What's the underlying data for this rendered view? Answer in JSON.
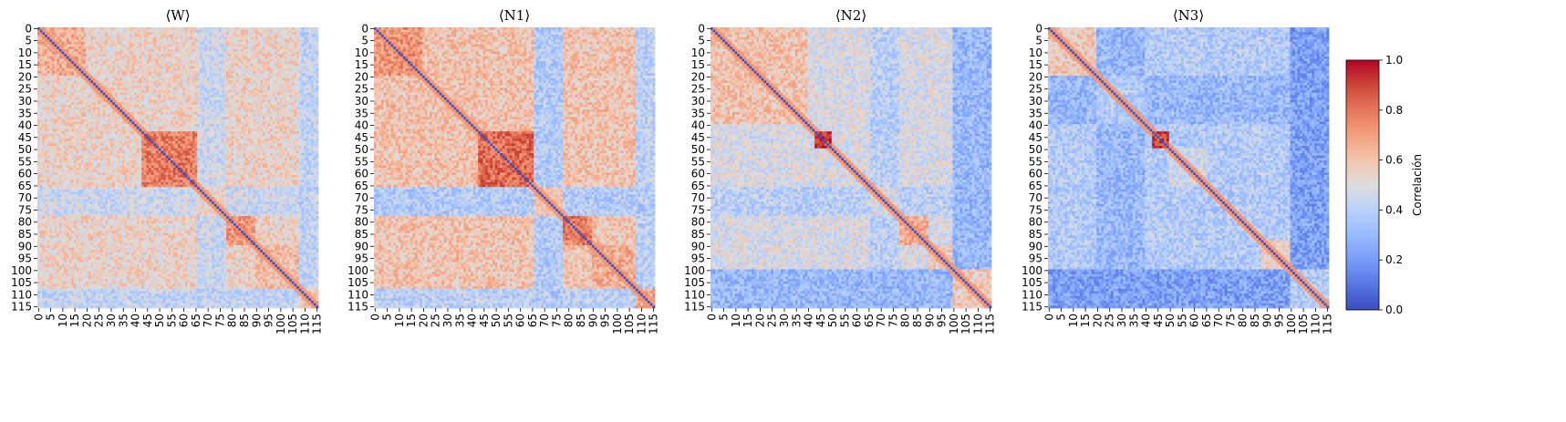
{
  "chart_data": [
    {
      "type": "heatmap",
      "title": "⟨W⟩",
      "size": 116,
      "tick_step": 5,
      "tick_labels": [
        "0",
        "5",
        "10",
        "15",
        "20",
        "25",
        "30",
        "35",
        "40",
        "45",
        "50",
        "55",
        "60",
        "65",
        "70",
        "75",
        "80",
        "85",
        "90",
        "95",
        "100",
        "105",
        "110",
        "115"
      ],
      "base": 0.55,
      "blocks": [
        {
          "range": [
            43,
            66
          ],
          "value": 0.78
        },
        {
          "range": [
            78,
            90
          ],
          "value": 0.72
        },
        {
          "range": [
            90,
            116
          ],
          "value": 0.62
        },
        {
          "range": [
            0,
            20
          ],
          "value": 0.66
        }
      ],
      "low_bands": [
        {
          "range": [
            66,
            78
          ],
          "value": 0.45
        },
        {
          "range": [
            108,
            116
          ],
          "value": 0.42
        }
      ]
    },
    {
      "type": "heatmap",
      "title": "⟨N1⟩",
      "size": 116,
      "tick_step": 5,
      "tick_labels": [
        "0",
        "5",
        "10",
        "15",
        "20",
        "25",
        "30",
        "35",
        "40",
        "45",
        "50",
        "55",
        "60",
        "65",
        "70",
        "75",
        "80",
        "85",
        "90",
        "95",
        "100",
        "105",
        "110",
        "115"
      ],
      "base": 0.6,
      "blocks": [
        {
          "range": [
            43,
            66
          ],
          "value": 0.82
        },
        {
          "range": [
            78,
            90
          ],
          "value": 0.78
        },
        {
          "range": [
            90,
            116
          ],
          "value": 0.66
        },
        {
          "range": [
            0,
            20
          ],
          "value": 0.72
        }
      ],
      "low_bands": [
        {
          "range": [
            66,
            78
          ],
          "value": 0.38
        },
        {
          "range": [
            108,
            116
          ],
          "value": 0.4
        }
      ]
    },
    {
      "type": "heatmap",
      "title": "⟨N2⟩",
      "size": 116,
      "tick_step": 5,
      "tick_labels": [
        "0",
        "5",
        "10",
        "15",
        "20",
        "25",
        "30",
        "35",
        "40",
        "45",
        "50",
        "55",
        "60",
        "65",
        "70",
        "75",
        "80",
        "85",
        "90",
        "95",
        "100",
        "105",
        "110",
        "115"
      ],
      "base": 0.48,
      "blocks": [
        {
          "range": [
            43,
            50
          ],
          "value": 0.92
        },
        {
          "range": [
            0,
            40
          ],
          "value": 0.6
        },
        {
          "range": [
            78,
            90
          ],
          "value": 0.65
        },
        {
          "range": [
            90,
            116
          ],
          "value": 0.58
        }
      ],
      "low_bands": [
        {
          "range": [
            100,
            116
          ],
          "value": 0.3
        },
        {
          "range": [
            66,
            78
          ],
          "value": 0.4
        }
      ]
    },
    {
      "type": "heatmap",
      "title": "⟨N3⟩",
      "size": 116,
      "tick_step": 5,
      "tick_labels": [
        "0",
        "5",
        "10",
        "15",
        "20",
        "25",
        "30",
        "35",
        "40",
        "45",
        "50",
        "55",
        "60",
        "65",
        "70",
        "75",
        "80",
        "85",
        "90",
        "95",
        "100",
        "105",
        "110",
        "115"
      ],
      "base": 0.38,
      "blocks": [
        {
          "range": [
            43,
            50
          ],
          "value": 0.9
        },
        {
          "range": [
            0,
            20
          ],
          "value": 0.58
        },
        {
          "range": [
            88,
            100
          ],
          "value": 0.55
        },
        {
          "range": [
            50,
            66
          ],
          "value": 0.46
        }
      ],
      "low_bands": [
        {
          "range": [
            100,
            116
          ],
          "value": 0.22
        },
        {
          "range": [
            20,
            40
          ],
          "value": 0.3
        }
      ]
    }
  ],
  "colorbar": {
    "label": "Correlación",
    "vmin": 0.0,
    "vmax": 1.0,
    "ticks": [
      "0.0",
      "0.2",
      "0.4",
      "0.6",
      "0.8",
      "1.0"
    ],
    "colormap": "coolwarm"
  }
}
